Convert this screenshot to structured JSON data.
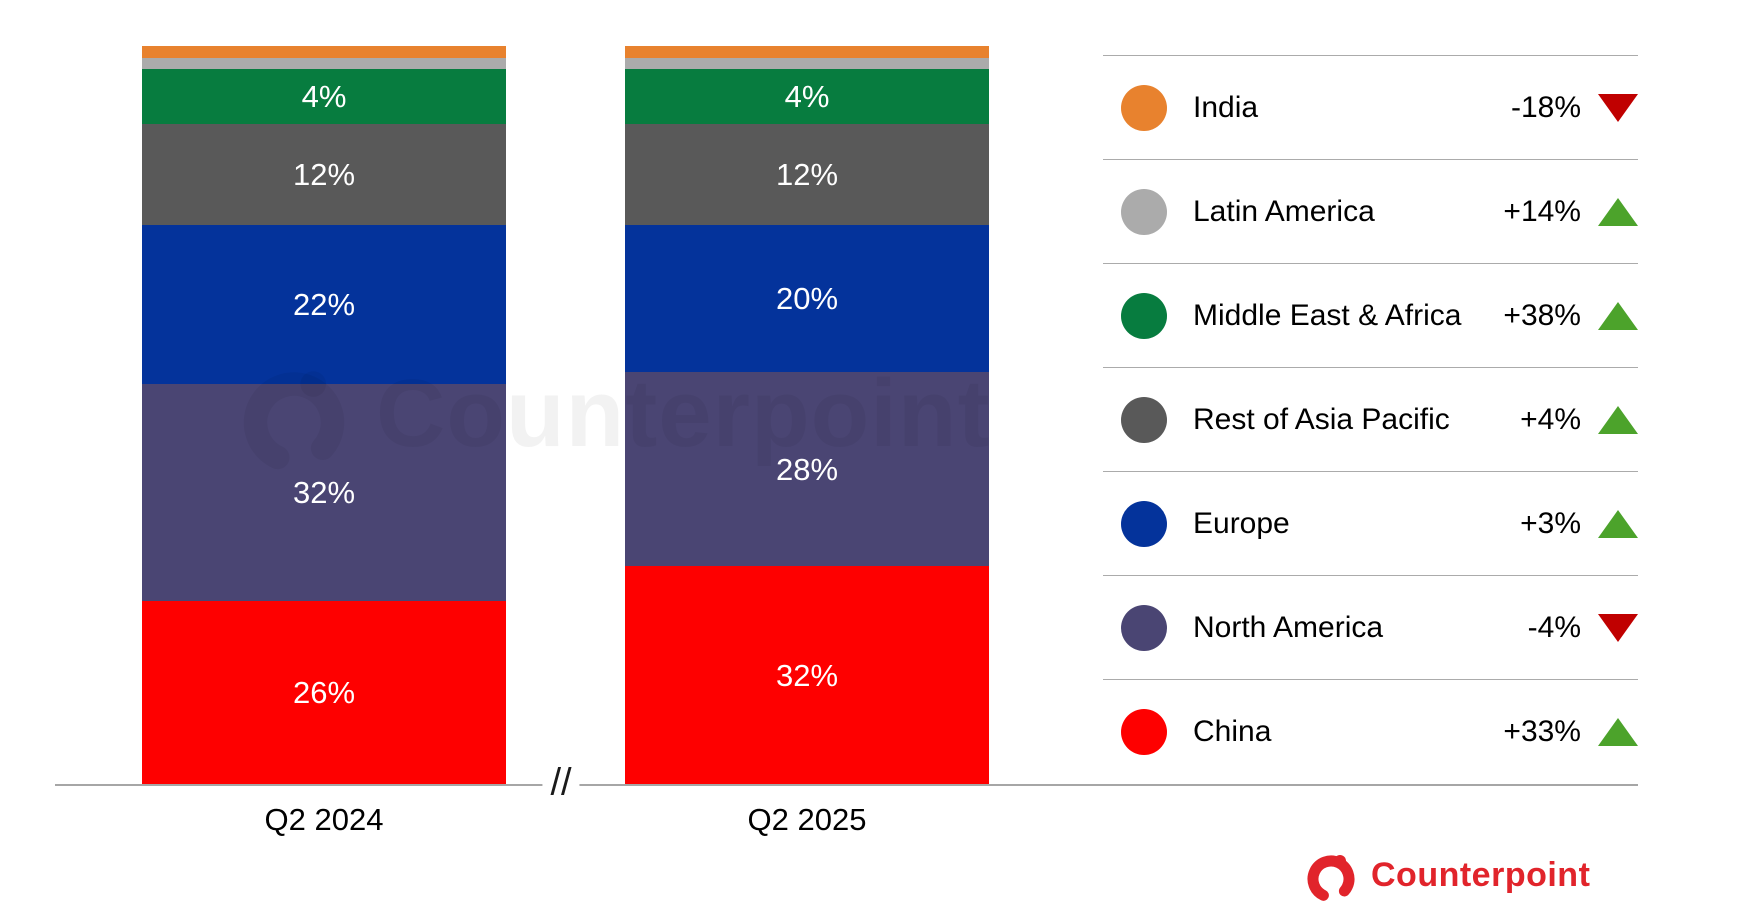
{
  "chart_data": {
    "type": "bar",
    "subtype": "stacked-100-percent",
    "unit": "%",
    "stack_order": "top-to-bottom",
    "grid": false,
    "legend_position": "right",
    "axis_break_symbol": "//",
    "categories": [
      "Q2 2024",
      "Q2 2025"
    ],
    "series": [
      {
        "name": "India",
        "color": "#E8822E",
        "values": [
          2,
          2
        ],
        "labels": [
          "",
          ""
        ]
      },
      {
        "name": "Latin America",
        "color": "#ABABAB",
        "values": [
          2,
          2
        ],
        "labels": [
          "",
          ""
        ]
      },
      {
        "name": "Middle East & Africa",
        "color": "#077C3F",
        "values": [
          4,
          4
        ],
        "labels": [
          "4%",
          "4%"
        ]
      },
      {
        "name": "Rest of Asia Pacific",
        "color": "#595959",
        "values": [
          12,
          12
        ],
        "labels": [
          "12%",
          "12%"
        ]
      },
      {
        "name": "Europe",
        "color": "#04339B",
        "values": [
          22,
          20
        ],
        "labels": [
          "22%",
          "20%"
        ]
      },
      {
        "name": "North America",
        "color": "#4A4573",
        "values": [
          32,
          28
        ],
        "labels": [
          "32%",
          "28%"
        ]
      },
      {
        "name": "China",
        "color": "#FE0000",
        "values": [
          26,
          32
        ],
        "labels": [
          "26%",
          "32%"
        ]
      }
    ],
    "legend": [
      {
        "label": "India",
        "color": "#E8822E",
        "change": "-18%",
        "direction": "down"
      },
      {
        "label": "Latin America",
        "color": "#ABABAB",
        "change": "+14%",
        "direction": "up"
      },
      {
        "label": "Middle East & Africa",
        "color": "#077C3F",
        "change": "+38%",
        "direction": "up"
      },
      {
        "label": "Rest of Asia Pacific",
        "color": "#595959",
        "change": "+4%",
        "direction": "up"
      },
      {
        "label": "Europe",
        "color": "#04339B",
        "change": "+3%",
        "direction": "up"
      },
      {
        "label": "North America",
        "color": "#4A4573",
        "change": "-4%",
        "direction": "down"
      },
      {
        "label": "China",
        "color": "#FE0000",
        "change": "+33%",
        "direction": "up"
      }
    ],
    "arrow_colors": {
      "up": "#4CA32B",
      "down": "#C00000"
    }
  },
  "watermark": {
    "text": "Counterpoint"
  },
  "brand": {
    "name": "Counterpoint",
    "color": "#E1242B"
  }
}
